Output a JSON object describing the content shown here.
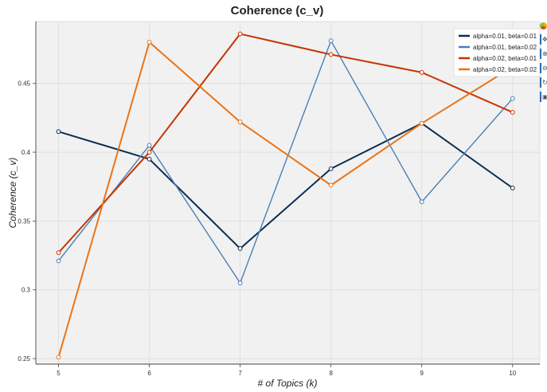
{
  "chart_data": {
    "type": "line",
    "title": "Coherence (c_v)",
    "xlabel": "# of Topics (k)",
    "ylabel": "Coherence (c_v)",
    "x": [
      5,
      6,
      7,
      8,
      9,
      10
    ],
    "x_ticks": [
      "5",
      "6",
      "7",
      "8",
      "9",
      "10"
    ],
    "y_ticks": [
      "0.25",
      "0.3",
      "0.35",
      "0.4",
      "0.45"
    ],
    "y_tick_values": [
      0.25,
      0.3,
      0.35,
      0.4,
      0.45
    ],
    "xlim": [
      4.75,
      10.3
    ],
    "ylim": [
      0.246,
      0.495
    ],
    "grid": true,
    "legend_position": "top-right",
    "series": [
      {
        "name": "alpha=0.01, beta=0.01",
        "color": "#0b2e52",
        "values": [
          0.415,
          0.395,
          0.33,
          0.388,
          0.421,
          0.374
        ]
      },
      {
        "name": "alpha=0.01, beta=0.02",
        "color": "#4a7fb5",
        "values": [
          0.321,
          0.405,
          0.305,
          0.481,
          0.364,
          0.439
        ]
      },
      {
        "name": "alpha=0.02, beta=0.01",
        "color": "#c53400",
        "values": [
          0.327,
          0.4,
          0.486,
          0.471,
          0.458,
          0.429
        ]
      },
      {
        "name": "alpha=0.02, beta=0.02",
        "color": "#ea7417",
        "values": [
          0.251,
          0.48,
          0.422,
          0.376,
          0.421,
          0.462
        ]
      }
    ]
  },
  "toolbar": {
    "icons": [
      "bokeh-logo-icon",
      "pan-icon",
      "box-zoom-icon",
      "wheel-zoom-icon",
      "reset-icon",
      "save-icon"
    ]
  },
  "colors": {
    "plot_background": "#f1f1f1",
    "grid": "#dcdcdc",
    "accent": "#2a6db5"
  }
}
